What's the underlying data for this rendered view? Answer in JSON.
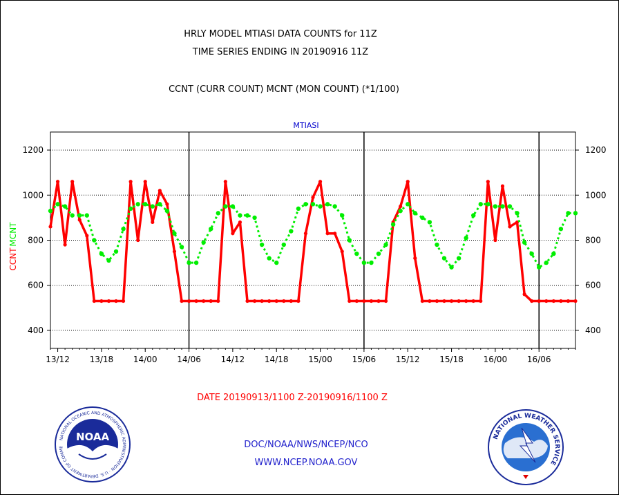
{
  "header": {
    "title_line1": "HRLY MODEL MTIASI DATA COUNTS for 11Z",
    "title_line2": "TIME SERIES ENDING IN 20190916 11Z",
    "subtitle": "CCNT (CURR COUNT) MCNT (MON COUNT) (*1/100)"
  },
  "footer": {
    "date_range": "DATE 20190913/1100 Z-20190916/1100 Z",
    "org": "DOC/NOAA/NWS/NCEP/NCO",
    "url": "WWW.NCEP.NOAA.GOV",
    "noaa_logo_text": "NOAA",
    "noaa_ring_text": "NATIONAL OCEANIC AND ATMOSPHERIC ADMINISTRATION · U.S. DEPARTMENT OF COMMERCE",
    "nws_ring_text": "NATIONAL WEATHER SERVICE"
  },
  "colors": {
    "ccnt": "#ff0000",
    "mcnt": "#00ee00",
    "panel_title": "#0000cc",
    "footer_blue": "#2222cc",
    "date_red": "#ff0000"
  },
  "chart_data": {
    "type": "line",
    "title": "MTIASI",
    "ylabel_series": [
      "CCNT",
      "MCNT"
    ],
    "ylim": [
      320,
      1280
    ],
    "yticks": [
      400,
      600,
      800,
      1000,
      1200
    ],
    "grid": true,
    "x_units": "hours from 13/11Z (hourly)",
    "xlim": [
      0,
      72
    ],
    "xticks": [
      {
        "x": 1,
        "label": "13/12"
      },
      {
        "x": 7,
        "label": "13/18"
      },
      {
        "x": 13,
        "label": "14/00"
      },
      {
        "x": 19,
        "label": "14/06"
      },
      {
        "x": 25,
        "label": "14/12"
      },
      {
        "x": 31,
        "label": "14/18"
      },
      {
        "x": 37,
        "label": "15/00"
      },
      {
        "x": 43,
        "label": "15/06"
      },
      {
        "x": 49,
        "label": "15/12"
      },
      {
        "x": 55,
        "label": "15/18"
      },
      {
        "x": 61,
        "label": "16/00"
      },
      {
        "x": 67,
        "label": "16/06"
      }
    ],
    "day_boundaries": [
      19,
      43,
      67
    ],
    "series": [
      {
        "name": "CCNT",
        "color": "#ff0000",
        "values": [
          860,
          1060,
          780,
          1060,
          890,
          820,
          530,
          530,
          530,
          530,
          530,
          1060,
          800,
          1060,
          880,
          1020,
          960,
          750,
          530,
          530,
          530,
          530,
          530,
          530,
          1060,
          830,
          880,
          530,
          530,
          530,
          530,
          530,
          530,
          530,
          530,
          830,
          990,
          1060,
          830,
          830,
          750,
          530,
          530,
          530,
          530,
          530,
          530,
          880,
          950,
          1060,
          720,
          530,
          530,
          530,
          530,
          530,
          530,
          530,
          530,
          530,
          1060,
          800,
          1040,
          860,
          880,
          560,
          530,
          530,
          530,
          530,
          530,
          530,
          530
        ]
      },
      {
        "name": "MCNT",
        "color": "#00ee00",
        "values": [
          930,
          960,
          950,
          910,
          910,
          910,
          800,
          740,
          710,
          750,
          850,
          940,
          960,
          960,
          950,
          960,
          930,
          830,
          770,
          700,
          700,
          790,
          850,
          920,
          950,
          950,
          910,
          910,
          900,
          780,
          720,
          700,
          780,
          840,
          940,
          960,
          960,
          950,
          960,
          950,
          910,
          800,
          740,
          700,
          700,
          740,
          780,
          870,
          930,
          960,
          920,
          900,
          880,
          780,
          720,
          680,
          720,
          810,
          910,
          960,
          960,
          950,
          950,
          950,
          920,
          790,
          740,
          680,
          700,
          740,
          850,
          920,
          920
        ]
      }
    ]
  }
}
